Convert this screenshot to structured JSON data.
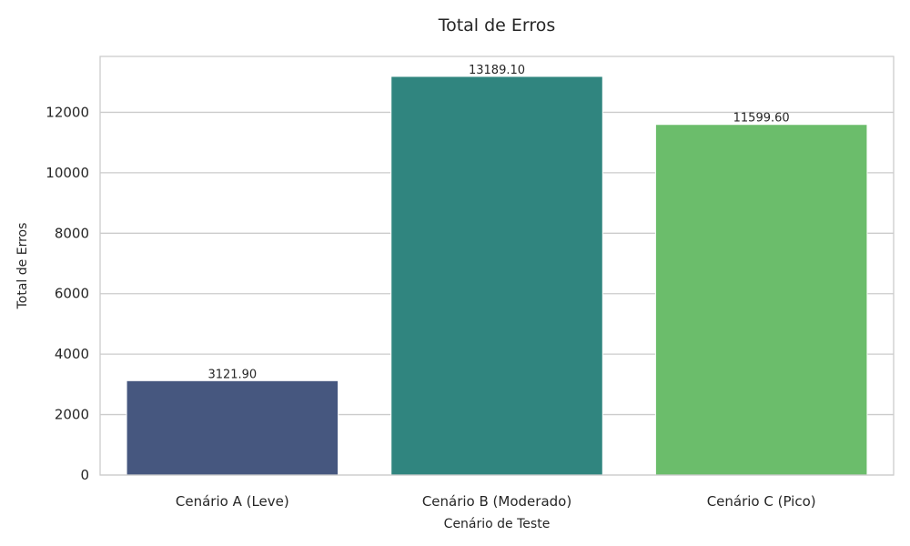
{
  "chart_data": {
    "type": "bar",
    "title": "Total de Erros",
    "xlabel": "Cenário de Teste",
    "ylabel": "Total de Erros",
    "categories": [
      "Cenário A (Leve)",
      "Cenário B (Moderado)",
      "Cenário C (Pico)"
    ],
    "values": [
      3121.9,
      13189.1,
      11599.6
    ],
    "value_labels": [
      "3121.90",
      "13189.10",
      "11599.60"
    ],
    "colors": [
      "#46577f",
      "#30857f",
      "#6bbd6b"
    ],
    "ylim": [
      0,
      13850
    ],
    "yticks": [
      0,
      2000,
      4000,
      6000,
      8000,
      10000,
      12000
    ],
    "ytick_labels": [
      "0",
      "2000",
      "4000",
      "6000",
      "8000",
      "10000",
      "12000"
    ],
    "grid": true,
    "legend": "none"
  }
}
